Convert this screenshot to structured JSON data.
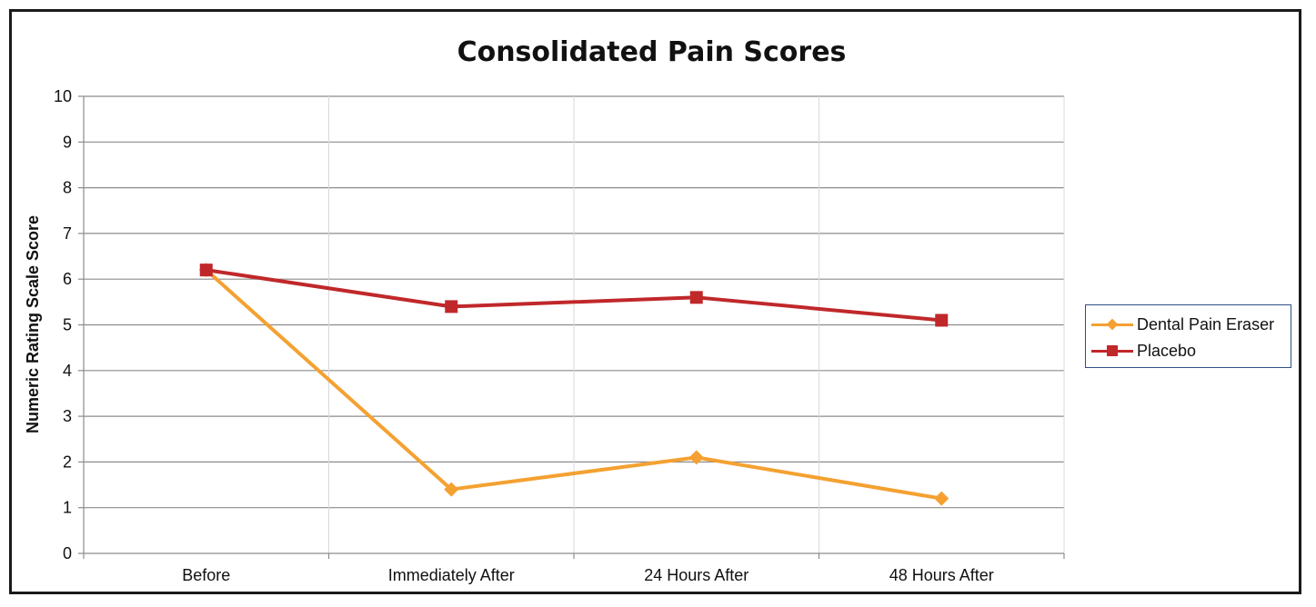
{
  "chart_data": {
    "type": "line",
    "title": "Consolidated Pain Scores",
    "xlabel": "",
    "ylabel": "Numeric Rating Scale Score",
    "categories": [
      "Before",
      "Immediately After",
      "24 Hours After",
      "48 Hours After"
    ],
    "ylim": [
      0,
      10
    ],
    "yticks": [
      0,
      1,
      2,
      3,
      4,
      5,
      6,
      7,
      8,
      9,
      10
    ],
    "grid": true,
    "legend_position": "right",
    "series": [
      {
        "name": "Dental Pain Eraser",
        "values": [
          6.2,
          1.4,
          2.1,
          1.2
        ],
        "color": "#f4a132",
        "marker": "diamond"
      },
      {
        "name": "Placebo",
        "values": [
          6.2,
          5.4,
          5.6,
          5.1
        ],
        "color": "#c0282a",
        "marker": "square"
      }
    ]
  }
}
